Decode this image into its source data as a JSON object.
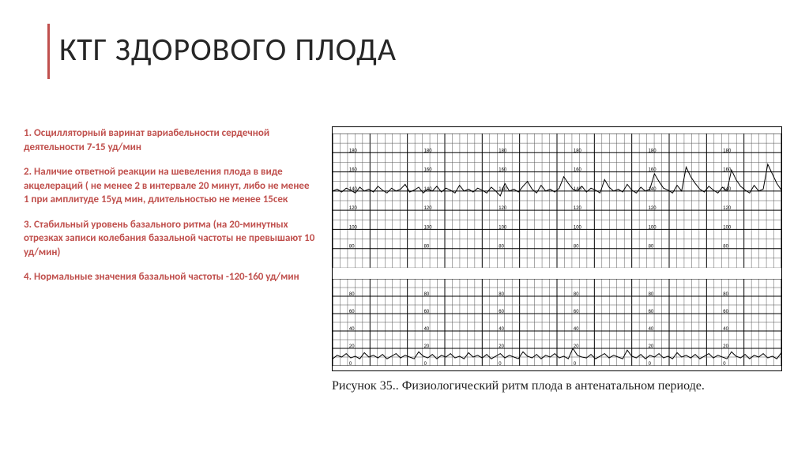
{
  "title": "КТГ ЗДОРОВОГО ПЛОДА",
  "accent_color": "#c0504d",
  "bullets": {
    "b1": "1. Осцилляторный варинат вариабельности сердечной деятельности 7-15 уд/мин",
    "b2": "2. Наличие ответной реакции на шевеления плода в виде акцелераций ( не менее 2 в интервале 20 минут, либо не менее 1 при амплитуде 15уд мин, длительностью не менее 15сек",
    "b3": "3. Стабильный уровень базального ритма (на 20-минутных отрезках записи колебания базальной частоты не превышают 10 уд/мин)",
    "b4": "4. Нормальные значения базальной частоты -120-160 уд/мин"
  },
  "caption": "Рисунок 35.. Физиологический ритм плода в антенатальном периоде.",
  "chart": {
    "top": {
      "type": "line",
      "ylim": [
        60,
        200
      ],
      "yticks": [
        80,
        100,
        120,
        140,
        160,
        180,
        200
      ],
      "baseline": 140,
      "grid_minor_color": "#777777",
      "grid_major_color": "#000000",
      "trace_color": "#000000",
      "values": [
        140,
        142,
        139,
        143,
        141,
        138,
        144,
        140,
        142,
        139,
        145,
        141,
        138,
        143,
        140,
        142,
        147,
        139,
        141,
        144,
        138,
        142,
        140,
        145,
        139,
        143,
        141,
        138,
        146,
        140,
        142,
        139,
        143,
        141,
        138,
        144,
        140,
        135,
        148,
        140,
        142,
        139,
        145,
        150,
        142,
        138,
        146,
        140,
        142,
        139,
        143,
        155,
        148,
        142,
        140,
        145,
        139,
        143,
        141,
        138,
        152,
        144,
        140,
        142,
        139,
        147,
        141,
        138,
        144,
        140,
        142,
        158,
        150,
        143,
        141,
        138,
        146,
        140,
        165,
        155,
        148,
        142,
        139,
        145,
        141,
        138,
        144,
        140,
        162,
        152,
        145,
        141,
        138,
        146,
        140,
        142,
        168,
        158,
        148,
        141
      ]
    },
    "bottom": {
      "type": "line",
      "ylim": [
        0,
        100
      ],
      "yticks": [
        0,
        20,
        40,
        60,
        80,
        100
      ],
      "grid_minor_color": "#777777",
      "grid_major_color": "#000000",
      "trace_color": "#000000",
      "values": [
        8,
        12,
        10,
        14,
        9,
        11,
        8,
        15,
        10,
        12,
        9,
        13,
        8,
        11,
        14,
        9,
        12,
        10,
        8,
        16,
        11,
        9,
        13,
        8,
        12,
        10,
        14,
        9,
        11,
        8,
        15,
        10,
        12,
        9,
        13,
        8,
        11,
        14,
        9,
        12,
        10,
        8,
        16,
        11,
        9,
        13,
        8,
        12,
        10,
        14,
        9,
        11,
        8,
        20,
        12,
        10,
        9,
        13,
        8,
        11,
        14,
        9,
        12,
        10,
        8,
        18,
        11,
        9,
        13,
        8,
        12,
        10,
        14,
        9,
        11,
        8,
        15,
        10,
        12,
        9,
        13,
        8,
        11,
        14,
        9,
        12,
        10,
        8,
        16,
        11,
        9,
        13,
        8,
        12,
        10,
        14,
        9,
        11,
        8,
        15
      ]
    }
  }
}
